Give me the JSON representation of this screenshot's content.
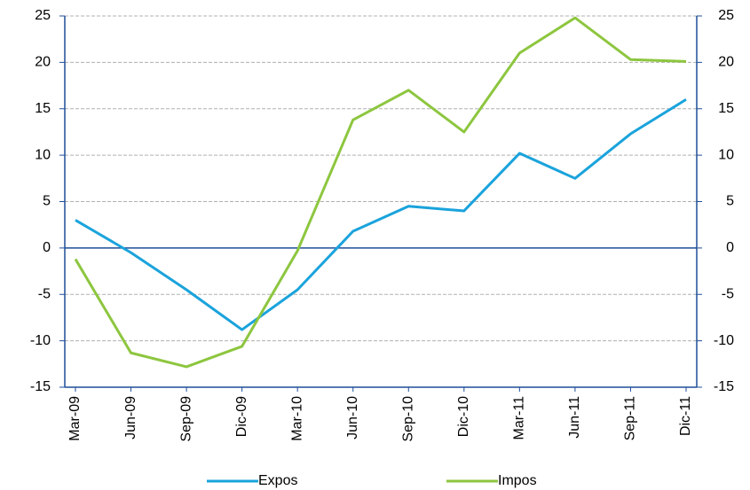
{
  "chart_data": {
    "type": "line",
    "categories": [
      "Mar-09",
      "Jun-09",
      "Sep-09",
      "Dic-09",
      "Mar-10",
      "Jun-10",
      "Sep-10",
      "Dic-10",
      "Mar-11",
      "Jun-11",
      "Sep-11",
      "Dic-11"
    ],
    "series": [
      {
        "name": "Expos",
        "color": "#1aa3dc",
        "values": [
          3,
          -0.5,
          -4.5,
          -8.8,
          -4.5,
          1.8,
          4.5,
          4,
          10.2,
          7.5,
          12.3,
          16
        ]
      },
      {
        "name": "Impos",
        "color": "#8dc63f",
        "values": [
          -1.2,
          -11.3,
          -12.8,
          -10.6,
          -0.3,
          13.8,
          17,
          12.5,
          21,
          24.8,
          20.3,
          20.1
        ]
      }
    ],
    "ylim": [
      -15,
      25
    ],
    "yticks": [
      -15,
      -10,
      -5,
      0,
      5,
      10,
      15,
      20,
      25
    ],
    "y2lim": [
      -15,
      25
    ],
    "y2ticks": [
      -15,
      -10,
      -5,
      0,
      5,
      10,
      15,
      20,
      25
    ],
    "grid": true,
    "legend": "bottom"
  }
}
